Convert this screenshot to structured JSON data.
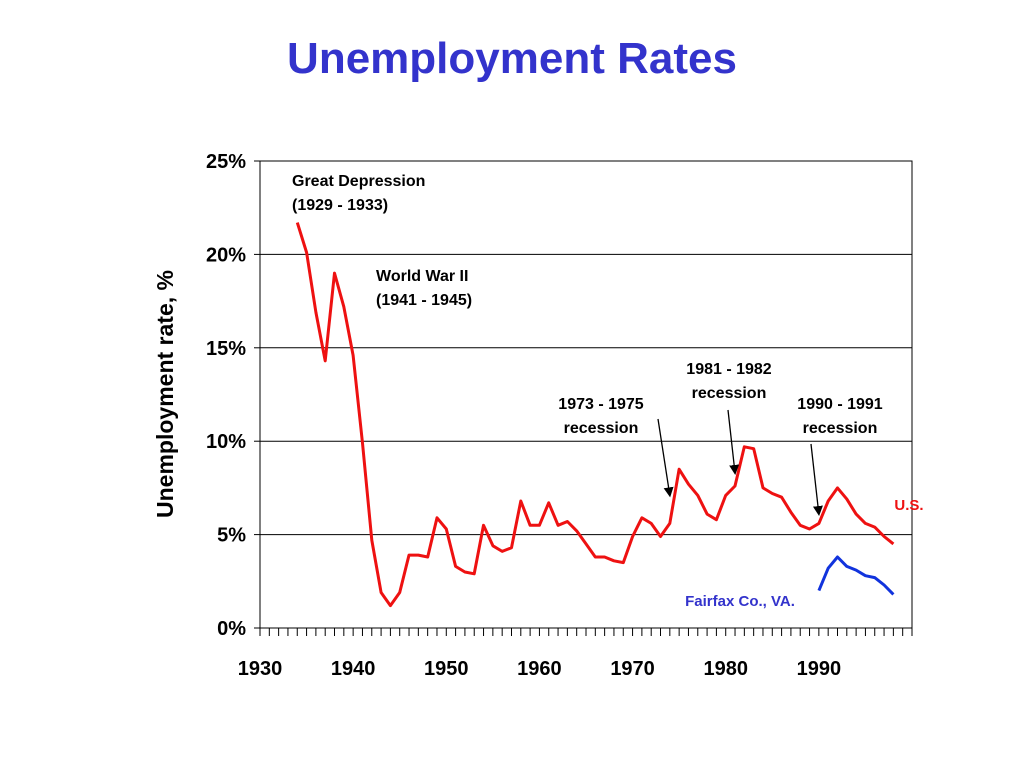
{
  "slide": {
    "title": "Unemployment Rates"
  },
  "colors": {
    "title": "#3333cc",
    "us_series": "#ee1111",
    "fairfax_series": "#1133dd",
    "fairfax_label": "#3333cc",
    "annotation_text": "#000000"
  },
  "chart_data": {
    "type": "line",
    "title": "Unemployment Rates",
    "xlabel": "",
    "ylabel": "Unemployment rate, %",
    "xlim": [
      1930,
      2000
    ],
    "ylim": [
      0,
      25
    ],
    "x_ticks": [
      1930,
      1940,
      1950,
      1960,
      1970,
      1980,
      1990
    ],
    "y_ticks": [
      0,
      5,
      10,
      15,
      20,
      25
    ],
    "y_tick_labels": [
      "0%",
      "5%",
      "10%",
      "15%",
      "20%",
      "25%"
    ],
    "grid": "horizontal",
    "series": [
      {
        "name": "U.S.",
        "x": [
          1934,
          1935,
          1936,
          1937,
          1938,
          1939,
          1940,
          1941,
          1942,
          1943,
          1944,
          1945,
          1946,
          1947,
          1948,
          1949,
          1950,
          1951,
          1952,
          1953,
          1954,
          1955,
          1956,
          1957,
          1958,
          1959,
          1960,
          1961,
          1962,
          1963,
          1964,
          1965,
          1966,
          1967,
          1968,
          1969,
          1970,
          1971,
          1972,
          1973,
          1974,
          1975,
          1976,
          1977,
          1978,
          1979,
          1980,
          1981,
          1982,
          1983,
          1984,
          1985,
          1986,
          1987,
          1988,
          1989,
          1990,
          1991,
          1992,
          1993,
          1994,
          1995,
          1996,
          1997,
          1998
        ],
        "y": [
          21.7,
          20.1,
          16.9,
          14.3,
          19.0,
          17.2,
          14.6,
          9.9,
          4.7,
          1.9,
          1.2,
          1.9,
          3.9,
          3.9,
          3.8,
          5.9,
          5.3,
          3.3,
          3.0,
          2.9,
          5.5,
          4.4,
          4.1,
          4.3,
          6.8,
          5.5,
          5.5,
          6.7,
          5.5,
          5.7,
          5.2,
          4.5,
          3.8,
          3.8,
          3.6,
          3.5,
          4.9,
          5.9,
          5.6,
          4.9,
          5.6,
          8.5,
          7.7,
          7.1,
          6.1,
          5.8,
          7.1,
          7.6,
          9.7,
          9.6,
          7.5,
          7.2,
          7.0,
          6.2,
          5.5,
          5.3,
          5.6,
          6.8,
          7.5,
          6.9,
          6.1,
          5.6,
          5.4,
          4.9,
          4.5
        ]
      },
      {
        "name": "Fairfax Co., VA.",
        "x": [
          1990,
          1991,
          1992,
          1993,
          1994,
          1995,
          1996,
          1997,
          1998
        ],
        "y": [
          2.0,
          3.2,
          3.8,
          3.3,
          3.1,
          2.8,
          2.7,
          2.3,
          1.8
        ]
      }
    ],
    "annotations": [
      {
        "lines": [
          "Great Depression",
          "(1929 - 1933)"
        ],
        "arrow": false
      },
      {
        "lines": [
          "World War II",
          "(1941 - 1945)"
        ],
        "arrow": false
      },
      {
        "lines": [
          "1973 - 1975",
          "recession"
        ],
        "arrow": true,
        "target": [
          1974,
          7.1
        ]
      },
      {
        "lines": [
          "1981 - 1982",
          "recession"
        ],
        "arrow": true,
        "target": [
          1981,
          8.3
        ]
      },
      {
        "lines": [
          "1990 - 1991",
          "recession"
        ],
        "arrow": true,
        "target": [
          1990,
          6.1
        ]
      }
    ]
  }
}
